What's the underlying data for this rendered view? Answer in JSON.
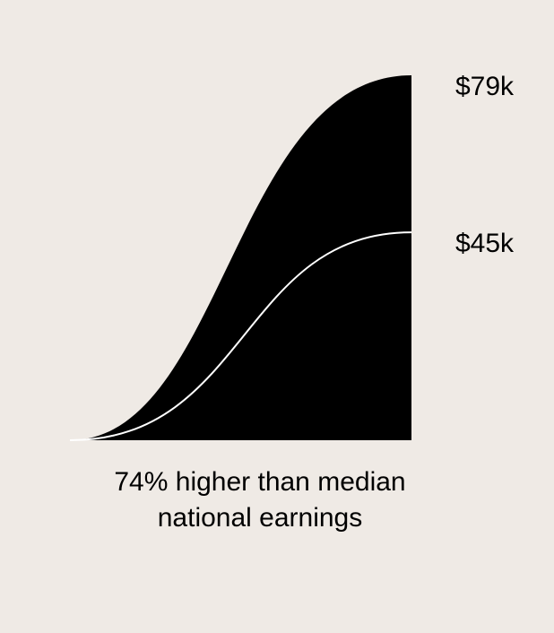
{
  "chart_data": {
    "type": "area",
    "series": [
      {
        "value": 79,
        "label": "$79k"
      },
      {
        "value": 45,
        "label": "$45k"
      }
    ],
    "ylim": [
      0,
      79
    ],
    "colors": {
      "background": "#EFEAE5",
      "fill": "#000000",
      "comparison_line": "#FFFFFF"
    }
  },
  "caption": {
    "line1": "74% higher than median",
    "line2": "national earnings"
  }
}
